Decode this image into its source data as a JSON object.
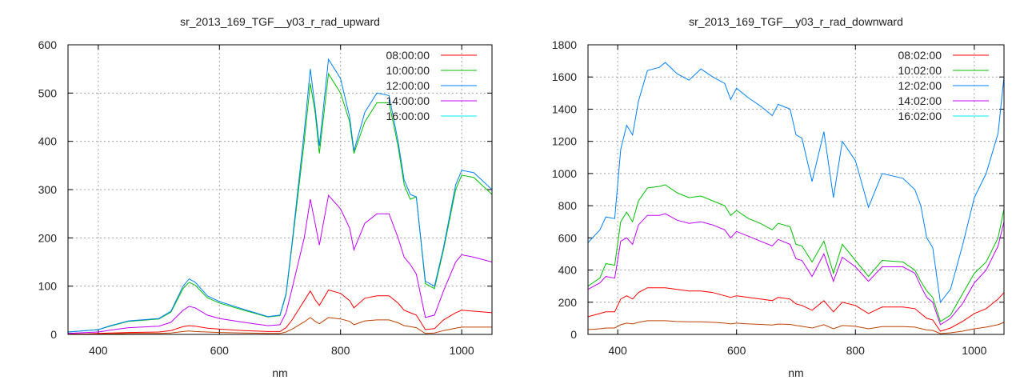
{
  "chart_data": [
    {
      "type": "line",
      "title": "sr_2013_169_TGF__y03_r_rad_upward",
      "xlabel": "nm",
      "ylabel": "",
      "xlim": [
        350,
        1050
      ],
      "ylim": [
        0,
        600
      ],
      "xticks": [
        400,
        600,
        800,
        1000
      ],
      "yticks": [
        0,
        100,
        200,
        300,
        400,
        500,
        600
      ],
      "grid": true,
      "legend_position": "top-right",
      "x": [
        350,
        380,
        400,
        420,
        450,
        500,
        520,
        540,
        550,
        560,
        580,
        600,
        640,
        680,
        700,
        710,
        720,
        740,
        750,
        758,
        765,
        780,
        800,
        815,
        822,
        840,
        860,
        880,
        895,
        905,
        915,
        925,
        940,
        955,
        970,
        990,
        1000,
        1020,
        1050
      ],
      "series": [
        {
          "name": "08:00:00",
          "color": "#ff0000",
          "line_color": "#ff0000",
          "values": [
            1,
            1,
            2,
            3,
            4,
            5,
            8,
            16,
            18,
            17,
            13,
            11,
            8,
            6,
            6,
            14,
            30,
            70,
            90,
            72,
            60,
            92,
            85,
            70,
            55,
            75,
            80,
            80,
            65,
            50,
            45,
            40,
            10,
            12,
            30,
            45,
            50,
            48,
            45
          ]
        },
        {
          "name": "10:00:00",
          "color": "#00c000",
          "line_color": "#00c000",
          "values": [
            5,
            8,
            10,
            17,
            27,
            32,
            46,
            95,
            108,
            102,
            76,
            65,
            50,
            36,
            39,
            82,
            185,
            400,
            520,
            460,
            375,
            540,
            500,
            440,
            375,
            440,
            480,
            480,
            390,
            310,
            280,
            285,
            105,
            95,
            175,
            300,
            330,
            325,
            290
          ]
        },
        {
          "name": "12:00:00",
          "color": "#0080ff",
          "line_color": "#0080ff",
          "values": [
            5,
            8,
            10,
            18,
            28,
            33,
            48,
            100,
            115,
            108,
            80,
            68,
            52,
            37,
            40,
            85,
            190,
            420,
            550,
            470,
            390,
            570,
            530,
            450,
            380,
            460,
            500,
            495,
            400,
            320,
            290,
            285,
            110,
            100,
            180,
            310,
            340,
            335,
            300
          ]
        },
        {
          "name": "14:00:00",
          "color": "#c000ff",
          "line_color": "#c000ff",
          "values": [
            2,
            4,
            5,
            9,
            14,
            17,
            25,
            50,
            58,
            55,
            40,
            33,
            25,
            18,
            20,
            45,
            95,
            200,
            280,
            230,
            185,
            288,
            260,
            220,
            175,
            230,
            250,
            250,
            200,
            160,
            145,
            125,
            35,
            40,
            90,
            150,
            165,
            160,
            150
          ]
        },
        {
          "name": "16:00:00",
          "color": "#00eeee",
          "line_color": "#c04000",
          "values": [
            0,
            0,
            1,
            1,
            2,
            2,
            3,
            6,
            7,
            6,
            5,
            4,
            3,
            2,
            2,
            5,
            11,
            26,
            35,
            27,
            22,
            35,
            32,
            27,
            20,
            28,
            30,
            30,
            24,
            18,
            16,
            14,
            2,
            3,
            8,
            13,
            15,
            15,
            15
          ]
        }
      ]
    },
    {
      "type": "line",
      "title": "sr_2013_169_TGF__y03_r_rad_downward",
      "xlabel": "nm",
      "ylabel": "",
      "xlim": [
        350,
        1050
      ],
      "ylim": [
        0,
        1800
      ],
      "xticks": [
        400,
        600,
        800,
        1000
      ],
      "yticks": [
        0,
        200,
        400,
        600,
        800,
        1000,
        1200,
        1400,
        1600,
        1800
      ],
      "grid": true,
      "legend_position": "top-right",
      "x": [
        350,
        370,
        380,
        395,
        405,
        415,
        425,
        435,
        450,
        470,
        480,
        500,
        520,
        540,
        560,
        580,
        590,
        600,
        620,
        640,
        660,
        670,
        690,
        700,
        710,
        727,
        747,
        763,
        778,
        800,
        822,
        845,
        880,
        900,
        910,
        920,
        930,
        943,
        960,
        980,
        1000,
        1020,
        1040,
        1050
      ],
      "series": [
        {
          "name": "08:02:00",
          "color": "#ff0000",
          "line_color": "#ff0000",
          "values": [
            110,
            130,
            140,
            140,
            220,
            240,
            220,
            260,
            290,
            290,
            290,
            280,
            270,
            270,
            260,
            240,
            230,
            240,
            230,
            220,
            210,
            230,
            220,
            190,
            180,
            150,
            210,
            140,
            200,
            180,
            130,
            170,
            170,
            160,
            130,
            100,
            90,
            20,
            40,
            80,
            130,
            160,
            220,
            260
          ]
        },
        {
          "name": "10:02:00",
          "color": "#00c000",
          "line_color": "#00c000",
          "values": [
            300,
            350,
            440,
            430,
            700,
            760,
            700,
            830,
            910,
            920,
            930,
            880,
            850,
            860,
            830,
            800,
            740,
            770,
            720,
            690,
            650,
            690,
            670,
            560,
            550,
            450,
            580,
            380,
            560,
            460,
            360,
            460,
            450,
            400,
            330,
            270,
            230,
            80,
            120,
            250,
            380,
            450,
            600,
            780
          ]
        },
        {
          "name": "12:02:00",
          "color": "#0080ff",
          "line_color": "#0080ff",
          "values": [
            570,
            650,
            730,
            720,
            1150,
            1300,
            1240,
            1450,
            1640,
            1660,
            1690,
            1620,
            1580,
            1650,
            1600,
            1560,
            1460,
            1530,
            1470,
            1420,
            1360,
            1430,
            1400,
            1240,
            1220,
            950,
            1260,
            850,
            1200,
            1080,
            790,
            1000,
            970,
            900,
            800,
            600,
            540,
            200,
            280,
            550,
            850,
            1000,
            1250,
            1600
          ]
        },
        {
          "name": "14:02:00",
          "color": "#c000ff",
          "line_color": "#c000ff",
          "values": [
            280,
            320,
            360,
            350,
            580,
            600,
            560,
            680,
            740,
            740,
            750,
            710,
            690,
            700,
            680,
            650,
            600,
            640,
            610,
            580,
            550,
            590,
            560,
            470,
            460,
            360,
            500,
            330,
            480,
            420,
            330,
            420,
            420,
            380,
            300,
            230,
            200,
            60,
            100,
            190,
            320,
            400,
            550,
            700
          ]
        },
        {
          "name": "16:02:00",
          "color": "#00eeee",
          "line_color": "#c04000",
          "values": [
            30,
            35,
            40,
            40,
            60,
            70,
            65,
            75,
            85,
            85,
            85,
            80,
            78,
            78,
            75,
            70,
            65,
            70,
            65,
            62,
            58,
            64,
            62,
            55,
            50,
            40,
            60,
            35,
            55,
            50,
            35,
            48,
            48,
            45,
            36,
            28,
            25,
            5,
            10,
            20,
            35,
            45,
            60,
            75
          ]
        }
      ]
    }
  ]
}
